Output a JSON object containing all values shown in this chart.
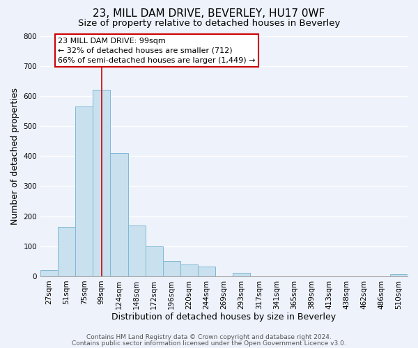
{
  "title": "23, MILL DAM DRIVE, BEVERLEY, HU17 0WF",
  "subtitle": "Size of property relative to detached houses in Beverley",
  "xlabel": "Distribution of detached houses by size in Beverley",
  "ylabel": "Number of detached properties",
  "bar_labels": [
    "27sqm",
    "51sqm",
    "75sqm",
    "99sqm",
    "124sqm",
    "148sqm",
    "172sqm",
    "196sqm",
    "220sqm",
    "244sqm",
    "269sqm",
    "293sqm",
    "317sqm",
    "341sqm",
    "365sqm",
    "389sqm",
    "413sqm",
    "438sqm",
    "462sqm",
    "486sqm",
    "510sqm"
  ],
  "bar_heights": [
    20,
    165,
    565,
    620,
    410,
    170,
    100,
    50,
    40,
    33,
    0,
    12,
    0,
    0,
    0,
    0,
    0,
    0,
    0,
    0,
    7
  ],
  "bar_color": "#c9e0ef",
  "bar_edge_color": "#7fb9d4",
  "vline_x_index": 3,
  "vline_color": "#cc0000",
  "annotation_line1": "23 MILL DAM DRIVE: 99sqm",
  "annotation_line2": "← 32% of detached houses are smaller (712)",
  "annotation_line3": "66% of semi-detached houses are larger (1,449) →",
  "annotation_box_color": "#ffffff",
  "annotation_box_edge": "#cc0000",
  "ylim": [
    0,
    800
  ],
  "yticks": [
    0,
    100,
    200,
    300,
    400,
    500,
    600,
    700,
    800
  ],
  "footer_line1": "Contains HM Land Registry data © Crown copyright and database right 2024.",
  "footer_line2": "Contains public sector information licensed under the Open Government Licence v3.0.",
  "bg_color": "#eef2fb",
  "grid_color": "#ffffff",
  "title_fontsize": 11,
  "subtitle_fontsize": 9.5,
  "axis_label_fontsize": 9,
  "tick_fontsize": 7.5,
  "footer_fontsize": 6.5,
  "annotation_fontsize": 8
}
